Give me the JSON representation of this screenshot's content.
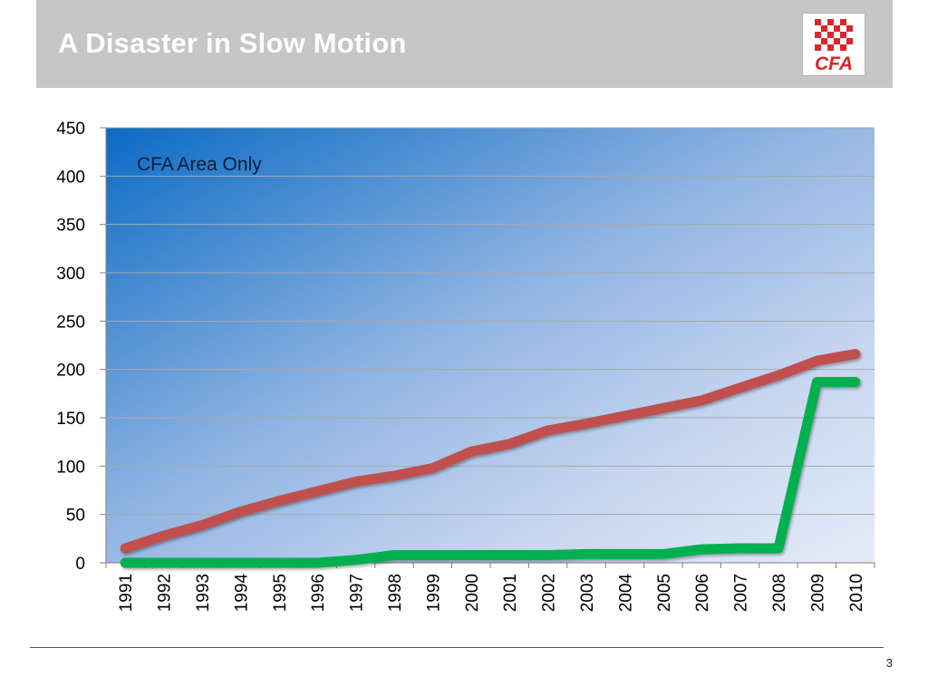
{
  "slide": {
    "title": "A Disaster in Slow Motion",
    "logo_text": "CFA",
    "page_number": "3",
    "colors": {
      "header_bg": "#c6c6c6",
      "logo_red": "#d9262c"
    }
  },
  "chart_data": {
    "type": "line",
    "title": "",
    "xlabel": "",
    "ylabel": "",
    "annotation": "CFA Area Only",
    "x": [
      "1991",
      "1992",
      "1993",
      "1994",
      "1995",
      "1996",
      "1997",
      "1998",
      "1999",
      "2000",
      "2001",
      "2002",
      "2003",
      "2004",
      "2005",
      "2006",
      "2007",
      "2008",
      "2009",
      "2010"
    ],
    "ylim": [
      0,
      450
    ],
    "yticks": [
      0,
      50,
      100,
      150,
      200,
      250,
      300,
      350,
      400,
      450
    ],
    "grid": true,
    "legend": "none",
    "series": [
      {
        "color": "#c0504d",
        "values": [
          15,
          28,
          39,
          53,
          64,
          74,
          84,
          90,
          98,
          115,
          123,
          137,
          144,
          152,
          160,
          168,
          181,
          194,
          209,
          216
        ]
      },
      {
        "color": "#00b050",
        "values": [
          0,
          0,
          0,
          0,
          0,
          0,
          3,
          8,
          8,
          8,
          8,
          8,
          9,
          9,
          9,
          14,
          15,
          15,
          187,
          187
        ]
      }
    ]
  }
}
